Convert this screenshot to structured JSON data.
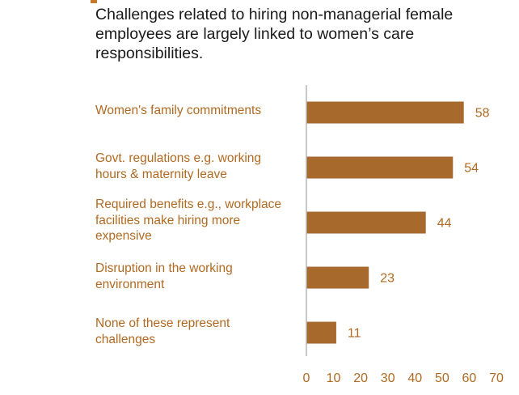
{
  "chart_data": {
    "type": "bar",
    "orientation": "horizontal",
    "title": "Challenges related to hiring non-managerial female employees are largely linked to women’s care responsibilities.",
    "categories": [
      "Women's family commitments",
      "Govt. regulations e.g. working\nhours & maternity leave",
      "Required benefits e.g., workplace\nfacilities make hiring more\nexpensive",
      "Disruption in the working\nenvironment",
      "None of these represent\nchallenges"
    ],
    "values": [
      58,
      54,
      44,
      23,
      11
    ],
    "xlim": [
      0,
      70
    ],
    "xticks": [
      "0",
      "10",
      "20",
      "30",
      "40",
      "50",
      "60",
      "70"
    ],
    "grid": false,
    "colors": {
      "bar": "#a8692d",
      "label": "#b06a22",
      "axis": "#b5b5b5",
      "text": "#1a1a1a"
    }
  }
}
